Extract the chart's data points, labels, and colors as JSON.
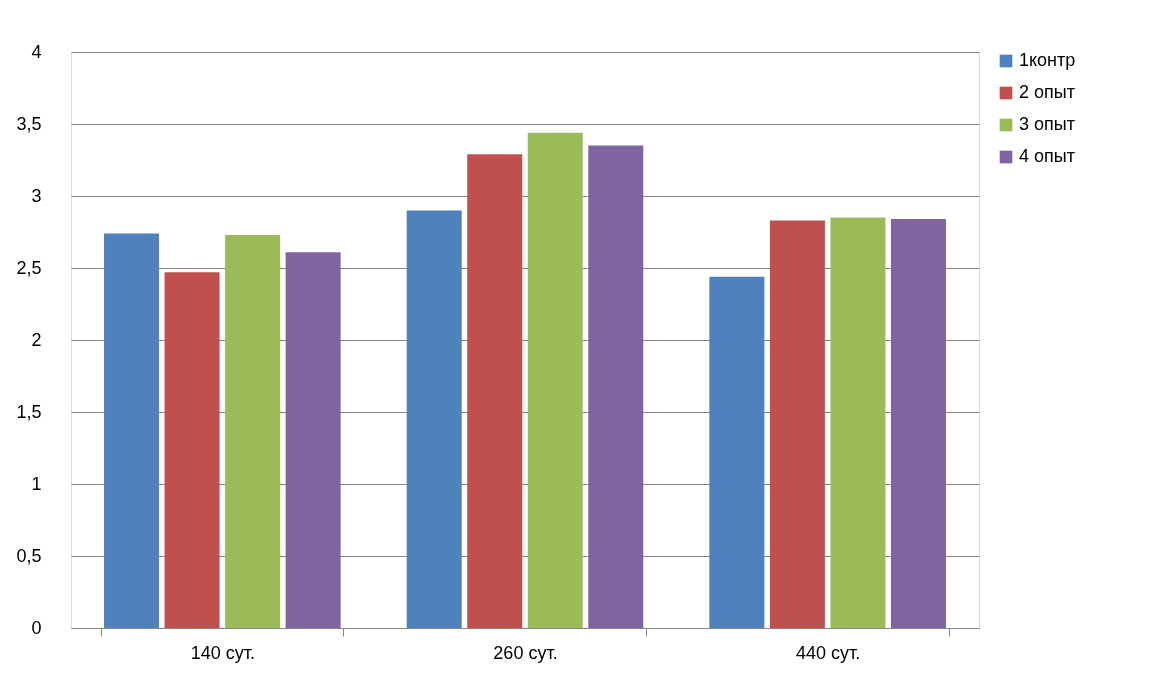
{
  "chart_data": {
    "type": "bar",
    "categories": [
      "140 сут.",
      "260 сут.",
      "440 сут."
    ],
    "series": [
      {
        "name": "1контр",
        "color": "#4f81bd",
        "values": [
          2.74,
          2.9,
          2.44
        ]
      },
      {
        "name": "2 опыт",
        "color": "#c0504d",
        "values": [
          2.47,
          3.29,
          2.83
        ]
      },
      {
        "name": "3 опыт",
        "color": "#9bbb59",
        "values": [
          2.73,
          3.44,
          2.85
        ]
      },
      {
        "name": "4 опыт",
        "color": "#8064a2",
        "values": [
          2.61,
          3.35,
          2.84
        ]
      }
    ],
    "ylim": [
      0,
      4
    ],
    "yticks": [
      0,
      {
        "value": 0.5,
        "label": "0,5"
      },
      1,
      {
        "value": 1.5,
        "label": "1,5"
      },
      2,
      {
        "value": 2.5,
        "label": "2,5"
      },
      3,
      {
        "value": 3.5,
        "label": "3,5"
      },
      4
    ],
    "grid": "y",
    "legend": "right"
  }
}
